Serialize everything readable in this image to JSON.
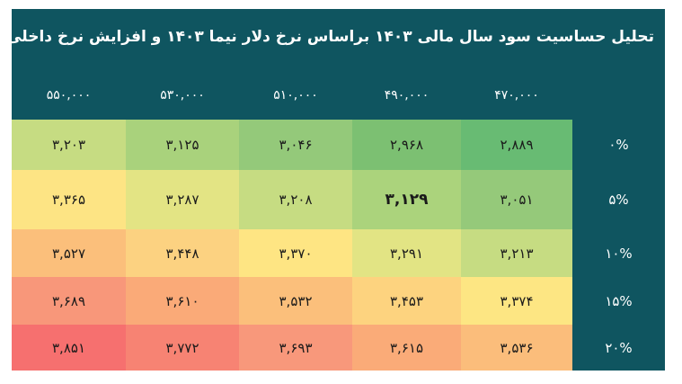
{
  "chart_data": {
    "type": "heatmap",
    "title": "تحلیل حساسیت سود سال مالی ۱۴۰۳ براساس نرخ دلار نیما ۱۴۰۳ و افزایش نرخ داخلی محصولات",
    "columns": [
      "۵۵۰,۰۰۰",
      "۵۳۰,۰۰۰",
      "۵۱۰,۰۰۰",
      "۴۹۰,۰۰۰",
      "۴۷۰,۰۰۰"
    ],
    "rows": [
      {
        "label": "۰%",
        "values": [
          "۳,۲۰۳",
          "۳,۱۲۵",
          "۳,۰۴۶",
          "۲,۹۶۸",
          "۲,۸۸۹"
        ],
        "colors": [
          "#c6dc82",
          "#a9d27c",
          "#94c97a",
          "#7cc072",
          "#68bb73"
        ]
      },
      {
        "label": "۵%",
        "values": [
          "۳,۳۶۵",
          "۳,۲۸۷",
          "۳,۲۰۸",
          "۳,۱۲۹",
          "۳,۰۵۱"
        ],
        "colors": [
          "#fde484",
          "#e3e484",
          "#c6dc82",
          "#abd37c",
          "#95c97a"
        ]
      },
      {
        "label": "۱۰%",
        "values": [
          "۳,۵۲۷",
          "۳,۴۴۸",
          "۳,۳۷۰",
          "۳,۲۹۱",
          "۳,۲۱۳"
        ],
        "colors": [
          "#fbbf7b",
          "#fcd281",
          "#fee583",
          "#e2e484",
          "#c6dc82"
        ]
      },
      {
        "label": "۱۵%",
        "values": [
          "۳,۶۸۹",
          "۳,۶۱۰",
          "۳,۵۳۲",
          "۳,۴۵۳",
          "۳,۳۷۴"
        ],
        "colors": [
          "#f8977a",
          "#faaa78",
          "#fbbf7b",
          "#fdd37f",
          "#fde683"
        ]
      },
      {
        "label": "۲۰%",
        "values": [
          "۳,۸۵۱",
          "۳,۷۷۲",
          "۳,۶۹۳",
          "۳,۶۱۵",
          "۳,۵۳۶"
        ],
        "colors": [
          "#f6706f",
          "#f78373",
          "#f8987b",
          "#faab78",
          "#fbbd7b"
        ]
      }
    ],
    "highlight": {
      "row": 1,
      "col": 3
    }
  }
}
